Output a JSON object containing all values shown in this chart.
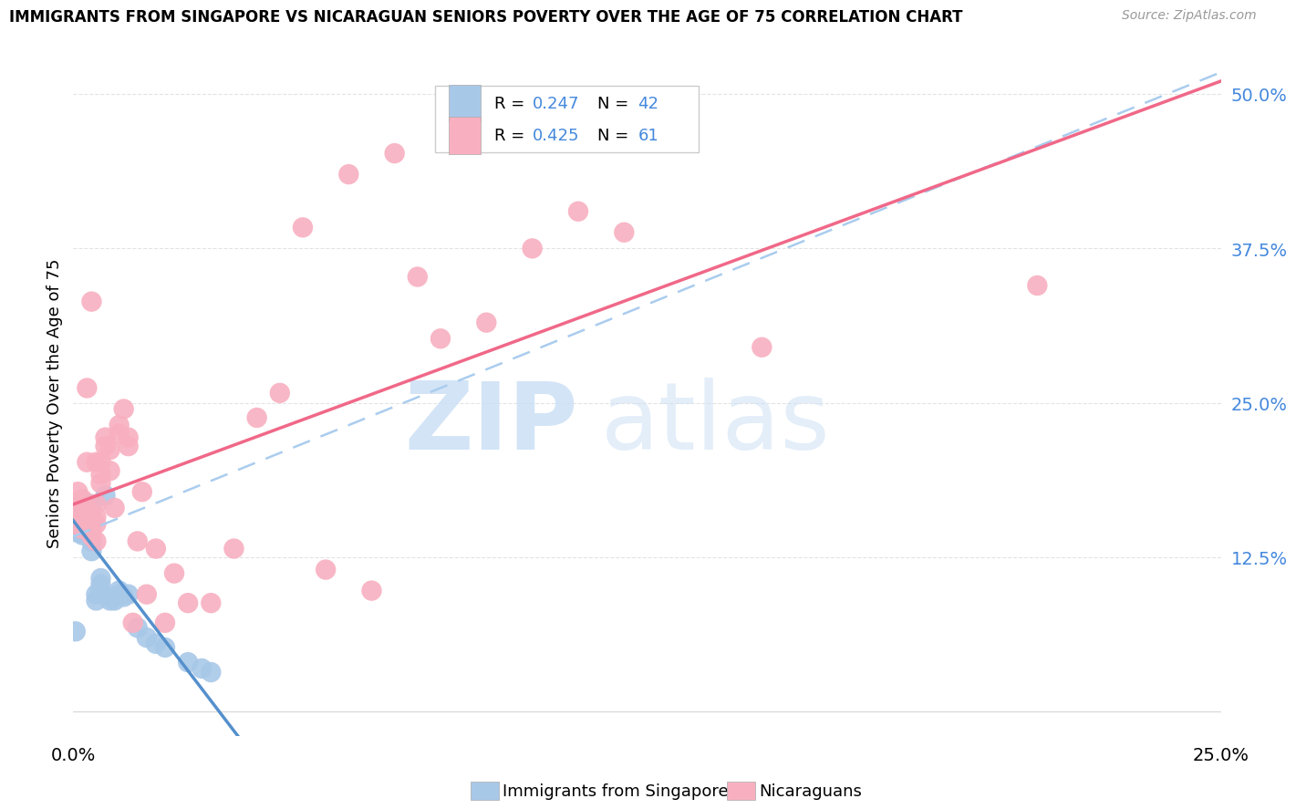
{
  "title": "IMMIGRANTS FROM SINGAPORE VS NICARAGUAN SENIORS POVERTY OVER THE AGE OF 75 CORRELATION CHART",
  "source": "Source: ZipAtlas.com",
  "ylabel": "Seniors Poverty Over the Age of 75",
  "xlim": [
    0.0,
    0.25
  ],
  "ylim": [
    -0.02,
    0.52
  ],
  "ytick_vals": [
    0.0,
    0.125,
    0.25,
    0.375,
    0.5
  ],
  "ytick_labels": [
    "",
    "12.5%",
    "25.0%",
    "37.5%",
    "50.0%"
  ],
  "r_sg": "0.247",
  "n_sg": "42",
  "r_nic": "0.425",
  "n_nic": "61",
  "sg_color": "#a8c8e8",
  "nic_color": "#f8b0c0",
  "sg_line": "#5590cc",
  "nic_line": "#f06888",
  "dash_line": "#aaccee",
  "tick_color": "#4488dd",
  "grid_color": "#dddddd",
  "singapore_x": [
    0.0005,
    0.001,
    0.001,
    0.001,
    0.001,
    0.0015,
    0.0015,
    0.002,
    0.002,
    0.002,
    0.002,
    0.002,
    0.002,
    0.003,
    0.003,
    0.003,
    0.003,
    0.003,
    0.003,
    0.004,
    0.004,
    0.004,
    0.004,
    0.005,
    0.005,
    0.006,
    0.006,
    0.006,
    0.007,
    0.008,
    0.009,
    0.01,
    0.01,
    0.011,
    0.012,
    0.014,
    0.016,
    0.018,
    0.02,
    0.025,
    0.028,
    0.03
  ],
  "singapore_y": [
    0.065,
    0.145,
    0.155,
    0.16,
    0.17,
    0.152,
    0.162,
    0.143,
    0.148,
    0.153,
    0.158,
    0.163,
    0.168,
    0.143,
    0.148,
    0.153,
    0.158,
    0.163,
    0.168,
    0.13,
    0.138,
    0.158,
    0.168,
    0.09,
    0.095,
    0.098,
    0.103,
    0.108,
    0.175,
    0.09,
    0.09,
    0.095,
    0.098,
    0.093,
    0.095,
    0.068,
    0.06,
    0.055,
    0.052,
    0.04,
    0.035,
    0.032
  ],
  "nicaragua_x": [
    0.0005,
    0.001,
    0.001,
    0.001,
    0.0015,
    0.002,
    0.002,
    0.002,
    0.002,
    0.003,
    0.003,
    0.003,
    0.003,
    0.003,
    0.004,
    0.004,
    0.004,
    0.004,
    0.005,
    0.005,
    0.005,
    0.005,
    0.005,
    0.006,
    0.006,
    0.006,
    0.007,
    0.007,
    0.008,
    0.008,
    0.009,
    0.01,
    0.01,
    0.011,
    0.012,
    0.012,
    0.013,
    0.014,
    0.015,
    0.016,
    0.018,
    0.02,
    0.022,
    0.025,
    0.03,
    0.035,
    0.04,
    0.045,
    0.05,
    0.055,
    0.06,
    0.065,
    0.07,
    0.075,
    0.08,
    0.09,
    0.1,
    0.11,
    0.12,
    0.15,
    0.21
  ],
  "nicaragua_y": [
    0.17,
    0.178,
    0.162,
    0.155,
    0.15,
    0.172,
    0.165,
    0.155,
    0.148,
    0.202,
    0.262,
    0.165,
    0.155,
    0.148,
    0.332,
    0.155,
    0.148,
    0.142,
    0.202,
    0.168,
    0.158,
    0.152,
    0.138,
    0.202,
    0.192,
    0.185,
    0.222,
    0.215,
    0.212,
    0.195,
    0.165,
    0.232,
    0.225,
    0.245,
    0.222,
    0.215,
    0.072,
    0.138,
    0.178,
    0.095,
    0.132,
    0.072,
    0.112,
    0.088,
    0.088,
    0.132,
    0.238,
    0.258,
    0.392,
    0.115,
    0.435,
    0.098,
    0.452,
    0.352,
    0.302,
    0.315,
    0.375,
    0.405,
    0.388,
    0.295,
    0.345
  ]
}
